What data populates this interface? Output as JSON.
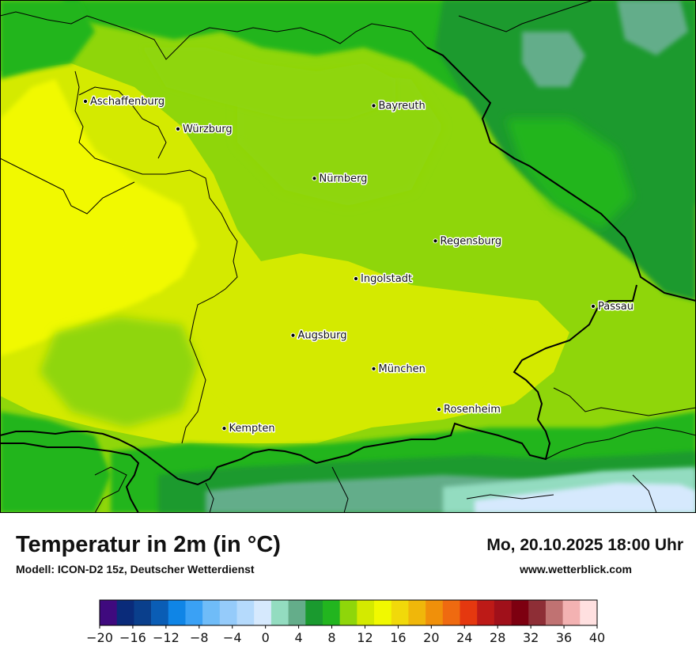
{
  "title": "Temperatur in 2m (in °C)",
  "model": "Modell: ICON-D2 15z, Deutscher Wetterdienst",
  "datetime": "Mo, 20.10.2025 18:00 Uhr",
  "website": "www.wetterblick.com",
  "cities": [
    {
      "name": "Aschaffenburg",
      "lon": 9.15,
      "lat": 49.98
    },
    {
      "name": "Würzburg",
      "lon": 9.93,
      "lat": 49.79
    },
    {
      "name": "Bayreuth",
      "lon": 11.58,
      "lat": 49.95
    },
    {
      "name": "Nürnberg",
      "lon": 11.08,
      "lat": 49.45
    },
    {
      "name": "Regensburg",
      "lon": 12.1,
      "lat": 49.02
    },
    {
      "name": "Ingolstadt",
      "lon": 11.43,
      "lat": 48.76
    },
    {
      "name": "Passau",
      "lon": 13.43,
      "lat": 48.57
    },
    {
      "name": "Augsburg",
      "lon": 10.9,
      "lat": 48.37
    },
    {
      "name": "München",
      "lon": 11.58,
      "lat": 48.14
    },
    {
      "name": "Rosenheim",
      "lon": 12.13,
      "lat": 47.86
    },
    {
      "name": "Kempten",
      "lon": 10.32,
      "lat": 47.73
    }
  ],
  "legend": {
    "colors": [
      "#3f0a7e",
      "#0a2b7a",
      "#0a3f8c",
      "#0a5db5",
      "#0f85e6",
      "#3aa1f5",
      "#6fbcf8",
      "#95cbfa",
      "#b5dafc",
      "#d6e9fd",
      "#93dcc0",
      "#64ad8a",
      "#1a9a2f",
      "#22b51f",
      "#8fd60a",
      "#d4ea00",
      "#f1f900",
      "#f1d90a",
      "#f0b70a",
      "#f0900a",
      "#ef6a10",
      "#e5380f",
      "#bd1a17",
      "#a0101a",
      "#7d0010",
      "#8e2e36",
      "#c07272",
      "#f3b2b2",
      "#ffe0e0"
    ],
    "ticks": [
      "−20",
      "−16",
      "−12",
      "−8",
      "−4",
      "0",
      "4",
      "8",
      "12",
      "16",
      "20",
      "24",
      "28",
      "32",
      "36",
      "40"
    ],
    "min": -20,
    "max": 40,
    "step": 4
  },
  "colors": {
    "dark_green": "#1a9a2f",
    "green": "#22b51f",
    "light_green": "#8fd60a",
    "yellow_green": "#d4ea00",
    "yellow": "#f1f900",
    "alpine_teal": "#64ad8a",
    "alpine_mint": "#93dcc0",
    "alpine_pale": "#d6e9fd"
  }
}
